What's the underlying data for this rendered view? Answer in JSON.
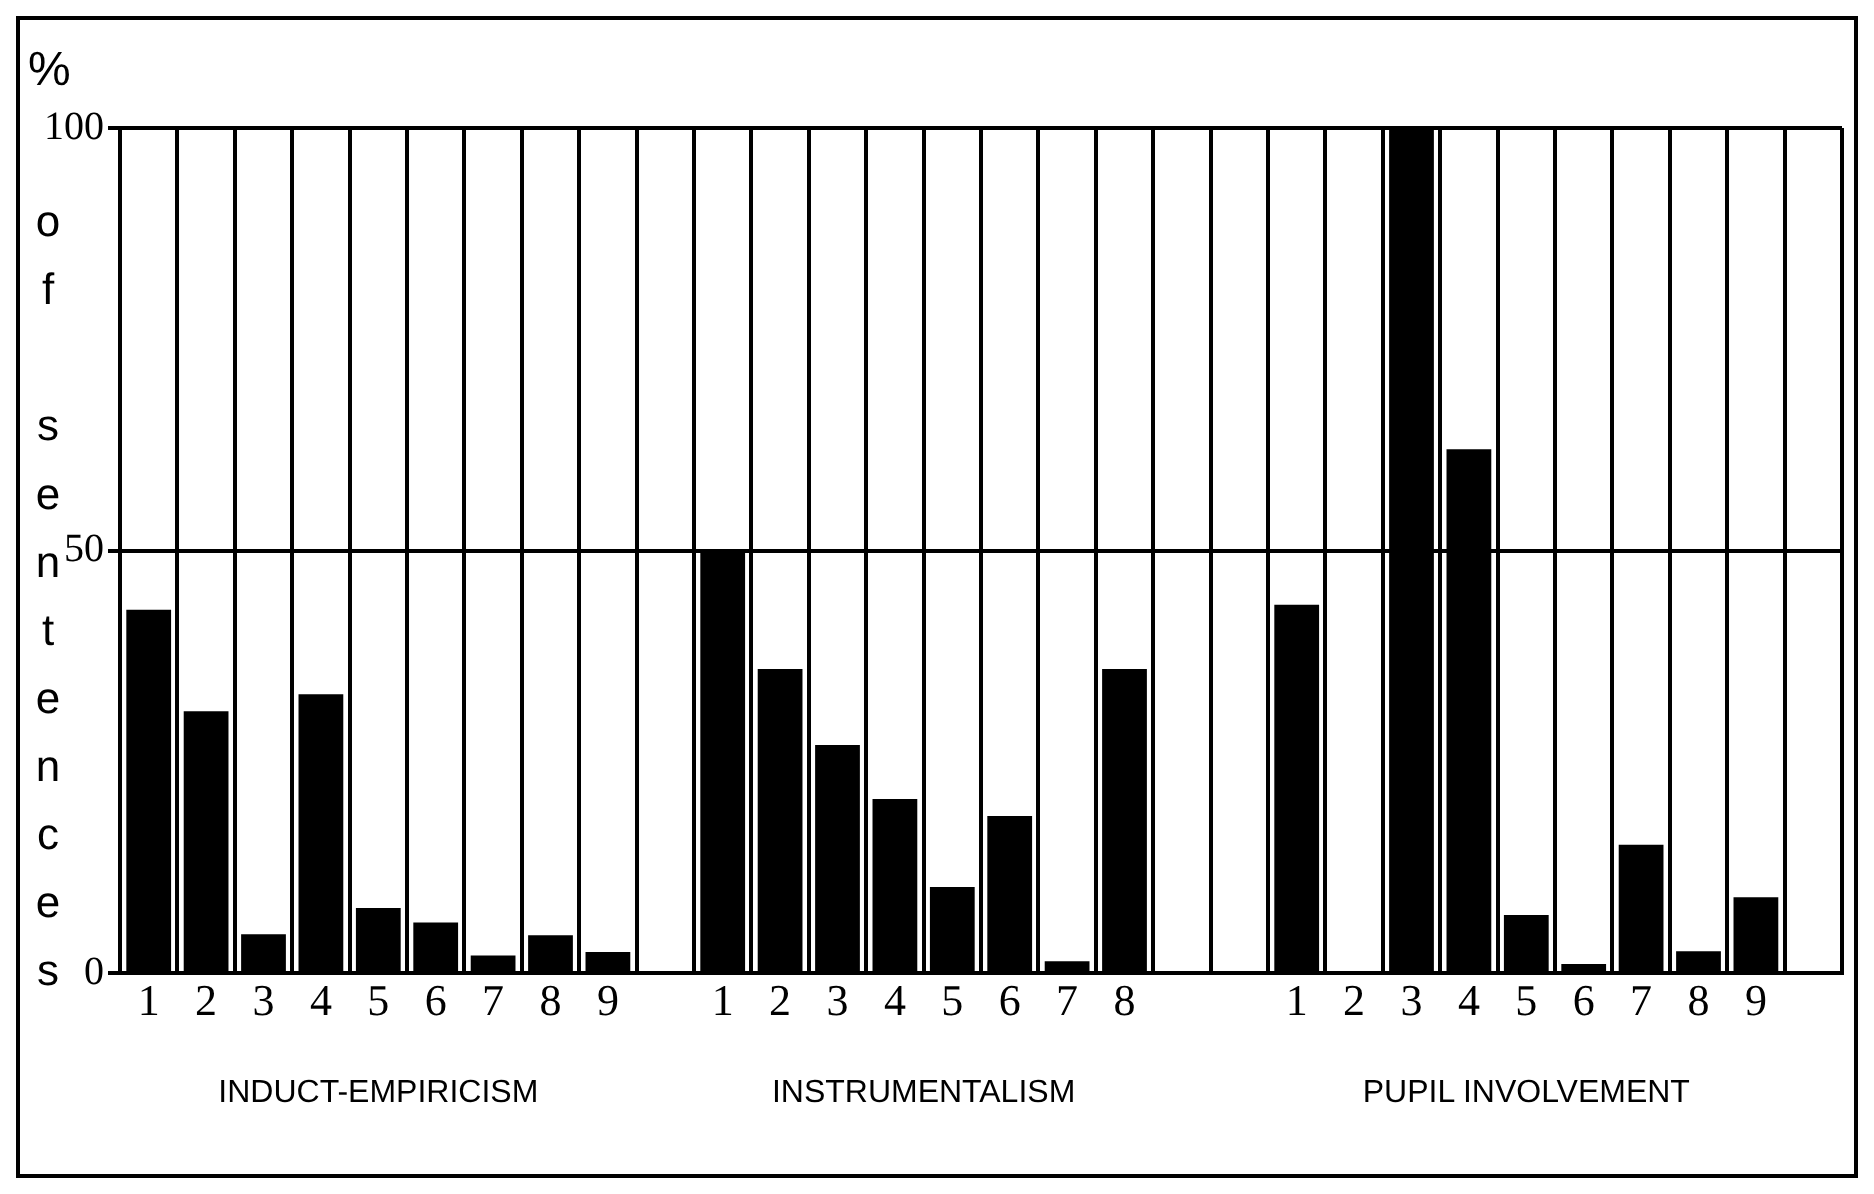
{
  "chart_data": {
    "type": "bar",
    "ylabel": "% of sentences",
    "categories": [
      "1",
      "2",
      "3",
      "4",
      "5",
      "6",
      "7",
      "8",
      "9",
      null,
      "1",
      "2",
      "3",
      "4",
      "5",
      "6",
      "7",
      "8",
      null,
      null,
      "1",
      "2",
      "3",
      "4",
      "5",
      "6",
      "7",
      "8",
      "9",
      null
    ],
    "values": [
      43,
      31,
      4.6,
      33,
      7.7,
      6,
      2.1,
      4.5,
      2.5,
      null,
      50,
      36,
      27,
      20.6,
      10.2,
      18.6,
      1.4,
      36,
      null,
      null,
      43.6,
      0,
      100,
      62,
      6.9,
      1.1,
      15.2,
      2.6,
      9,
      null
    ],
    "color": "#000000",
    "ylim": [
      0,
      100
    ],
    "yticks": [
      0,
      50,
      100
    ],
    "grid": true,
    "annotations": [
      "INDUCT-EMPIRICISM",
      "INSTRUMENTALISM",
      "PUPIL INVOLVEMENT"
    ]
  }
}
